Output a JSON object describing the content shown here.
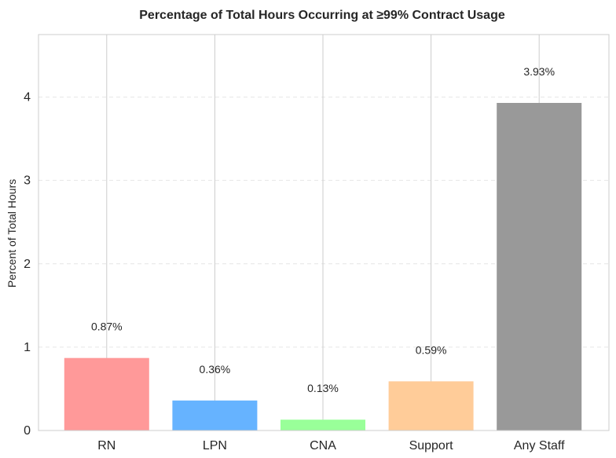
{
  "chart_data": {
    "type": "bar",
    "title": "Percentage of Total Hours Occurring at ≥99% Contract Usage",
    "xlabel": "",
    "ylabel": "Percent of Total Hours",
    "categories": [
      "RN",
      "LPN",
      "CNA",
      "Support",
      "Any Staff"
    ],
    "values": [
      0.87,
      0.36,
      0.13,
      0.59,
      3.93
    ],
    "data_labels": [
      "0.87%",
      "0.36%",
      "0.13%",
      "0.59%",
      "3.93%"
    ],
    "colors": [
      "#ff9999",
      "#66b3ff",
      "#99ff99",
      "#ffcc99",
      "#999999"
    ],
    "ylim": [
      0,
      4.75
    ],
    "yticks": [
      0,
      1,
      2,
      3,
      4
    ],
    "grid": "y-dashed, x-solid at categories",
    "legend": "none"
  }
}
